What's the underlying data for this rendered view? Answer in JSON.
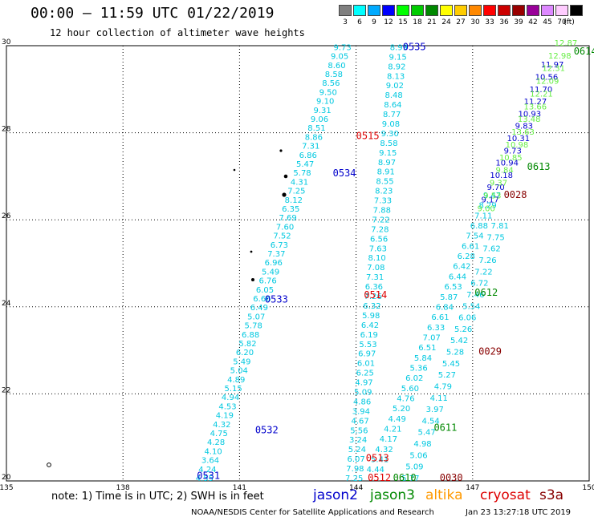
{
  "header": {
    "title": "00:00 – 11:59 UTC 01/22/2019",
    "subtitle": "12 hour collection of altimeter wave heights"
  },
  "legend": {
    "unit": "(ft)",
    "bins": [
      {
        "label": "3",
        "color": "#808080"
      },
      {
        "label": "6",
        "color": "#00ffff"
      },
      {
        "label": "9",
        "color": "#00aaff"
      },
      {
        "label": "12",
        "color": "#0000ff"
      },
      {
        "label": "15",
        "color": "#00ff00"
      },
      {
        "label": "18",
        "color": "#00cc00"
      },
      {
        "label": "21",
        "color": "#008800"
      },
      {
        "label": "24",
        "color": "#ffff00"
      },
      {
        "label": "27",
        "color": "#ffcc00"
      },
      {
        "label": "30",
        "color": "#ff8800"
      },
      {
        "label": "33",
        "color": "#ff0000"
      },
      {
        "label": "36",
        "color": "#cc0000"
      },
      {
        "label": "39",
        "color": "#990000"
      },
      {
        "label": "42",
        "color": "#990099"
      },
      {
        "label": "45",
        "color": "#dd88ff"
      },
      {
        "label": "70",
        "color": "#ffccff"
      },
      {
        "label": "",
        "color": "#000000"
      }
    ]
  },
  "axes": {
    "lat_ticks": [
      "20",
      "22",
      "24",
      "26",
      "28",
      "30"
    ],
    "lon_ticks": [
      "135",
      "138",
      "141",
      "144",
      "147",
      "150"
    ]
  },
  "pass_labels": [
    {
      "text": "0535",
      "lon": 145.5,
      "lat": 29.9,
      "color": "#0000cc"
    },
    {
      "text": "0534",
      "lon": 143.7,
      "lat": 27.0,
      "color": "#0000cc"
    },
    {
      "text": "0533",
      "lon": 141.95,
      "lat": 24.1,
      "color": "#0000cc"
    },
    {
      "text": "0532",
      "lon": 141.7,
      "lat": 21.1,
      "color": "#0000cc"
    },
    {
      "text": "0531",
      "lon": 140.2,
      "lat": 20.05,
      "color": "#0000cc"
    },
    {
      "text": "0515",
      "lon": 144.3,
      "lat": 27.85,
      "color": "#dd0000"
    },
    {
      "text": "0514",
      "lon": 144.5,
      "lat": 24.2,
      "color": "#dd0000"
    },
    {
      "text": "0513",
      "lon": 144.55,
      "lat": 20.45,
      "color": "#dd0000"
    },
    {
      "text": "0512",
      "lon": 144.6,
      "lat": 20.0,
      "color": "#dd0000"
    },
    {
      "text": "0613",
      "lon": 148.7,
      "lat": 27.15,
      "color": "#008800"
    },
    {
      "text": "0612",
      "lon": 147.35,
      "lat": 24.25,
      "color": "#008800"
    },
    {
      "text": "0611",
      "lon": 146.3,
      "lat": 21.15,
      "color": "#008800"
    },
    {
      "text": "0610",
      "lon": 145.25,
      "lat": 20.0,
      "color": "#008800"
    },
    {
      "text": "0614",
      "lon": 149.9,
      "lat": 29.8,
      "color": "#008800"
    },
    {
      "text": "0028",
      "lon": 148.1,
      "lat": 26.5,
      "color": "#880000"
    },
    {
      "text": "0029",
      "lon": 147.45,
      "lat": 22.9,
      "color": "#880000"
    },
    {
      "text": "0030",
      "lon": 146.45,
      "lat": 20.0,
      "color": "#880000"
    }
  ],
  "tracks": [
    {
      "name": "track-0531-0533",
      "color": "#00c8e0",
      "values": [
        "4.55",
        "4.24",
        "3.64",
        "4.10",
        "4.28",
        "4.75",
        "4.32",
        "4.19",
        "4.53",
        "4.94",
        "5.15",
        "4.89",
        "5.04",
        "5.49",
        "6.20",
        "5.82",
        "6.88",
        "5.78",
        "5.07",
        "6.49",
        "6.66",
        "6.05",
        "6.76",
        "5.49",
        "6.96",
        "7.37",
        "6.73",
        "7.52",
        "7.60",
        "7.69",
        "6.35",
        "8.12",
        "7.25",
        "4.31",
        "5.78",
        "5.47",
        "6.86",
        "7.31",
        "8.86",
        "8.51",
        "9.06",
        "9.31",
        "9.10",
        "9.50",
        "8.56",
        "8.58",
        "8.60",
        "9.05",
        "9.73"
      ],
      "start": [
        140.1,
        20.0
      ],
      "end": [
        143.65,
        29.9
      ]
    },
    {
      "name": "track-0534-0535",
      "color": "#00c8e0",
      "values": [
        "7.25",
        "7.98",
        "6.07",
        "5.24",
        "3.24",
        "5.56",
        "4.67",
        "3.94",
        "4.86",
        "5.09",
        "4.97",
        "6.25",
        "6.01",
        "6.97",
        "5.53",
        "6.19",
        "6.42",
        "5.98",
        "6.32",
        "7.26",
        "6.36",
        "7.31",
        "7.08",
        "8.10",
        "7.63",
        "6.56",
        "7.28",
        "7.22",
        "7.88",
        "7.33",
        "8.23",
        "8.55",
        "8.91",
        "8.97",
        "9.15",
        "8.58",
        "9.30",
        "9.08",
        "8.77",
        "8.64",
        "8.48",
        "9.02",
        "8.13",
        "8.92",
        "9.15",
        "8.99"
      ],
      "start": [
        143.95,
        20.0
      ],
      "end": [
        145.1,
        29.9
      ]
    },
    {
      "name": "track-0610-0612",
      "color": "#00c8e0",
      "values": [
        "4.44",
        "5.41",
        "4.32",
        "4.17",
        "4.21",
        "4.49",
        "5.20",
        "4.76",
        "5.60",
        "6.02",
        "5.36",
        "5.84",
        "6.51",
        "7.07",
        "6.33",
        "6.61",
        "6.84",
        "5.87",
        "6.53",
        "6.44",
        "6.42",
        "6.28",
        "6.61",
        "7.54",
        "6.88",
        "7.11",
        "8.29",
        "9.47"
      ],
      "start": [
        144.5,
        20.2
      ],
      "end": [
        147.5,
        26.5
      ]
    },
    {
      "name": "track-0029-0030",
      "color": "#00c8e0",
      "values": [
        "5.77",
        "5.09",
        "5.06",
        "4.98",
        "5.47",
        "4.54",
        "3.97",
        "4.11",
        "4.79",
        "5.27",
        "5.45",
        "5.28",
        "5.42",
        "5.26",
        "6.06",
        "5.54",
        "7.46",
        "6.72",
        "7.22",
        "7.26",
        "7.62",
        "7.75",
        "7.81"
      ],
      "start": [
        145.4,
        20.0
      ],
      "end": [
        147.7,
        25.8
      ]
    },
    {
      "name": "track-0028-0613",
      "color": "#0000cc",
      "values": [
        "9.17",
        "9.70",
        "10.18",
        "10.94",
        "9.73",
        "10.31",
        "9.83",
        "10.93",
        "11.27",
        "11.70",
        "10.56",
        "11.97"
      ],
      "start": [
        147.45,
        26.4
      ],
      "end": [
        149.05,
        29.5
      ]
    },
    {
      "name": "track-0613-green",
      "color": "#66ee44",
      "values": [
        "9.00",
        "9.53",
        "9.37",
        "9.84",
        "10.85",
        "10.98",
        "13.63",
        "13.48",
        "13.66",
        "12.21",
        "12.09",
        "12.31",
        "12.98",
        "12.87"
      ],
      "start": [
        147.35,
        26.2
      ],
      "end": [
        149.4,
        30.0
      ]
    }
  ],
  "footer": {
    "note": "note: 1) Time is in UTC; 2) SWH is in feet",
    "satellites": [
      {
        "name": "jason2",
        "color": "#0000cc"
      },
      {
        "name": "jason3",
        "color": "#008800"
      },
      {
        "name": "altika",
        "color": "#ff9900"
      },
      {
        "name": "cryosat",
        "color": "#dd0000"
      },
      {
        "name": "s3a",
        "color": "#880000"
      }
    ],
    "credit": "NOAA/NESDIS Center for Satellite Applications and Research",
    "generated": "Jan 23 13:27:18 UTC 2019"
  }
}
